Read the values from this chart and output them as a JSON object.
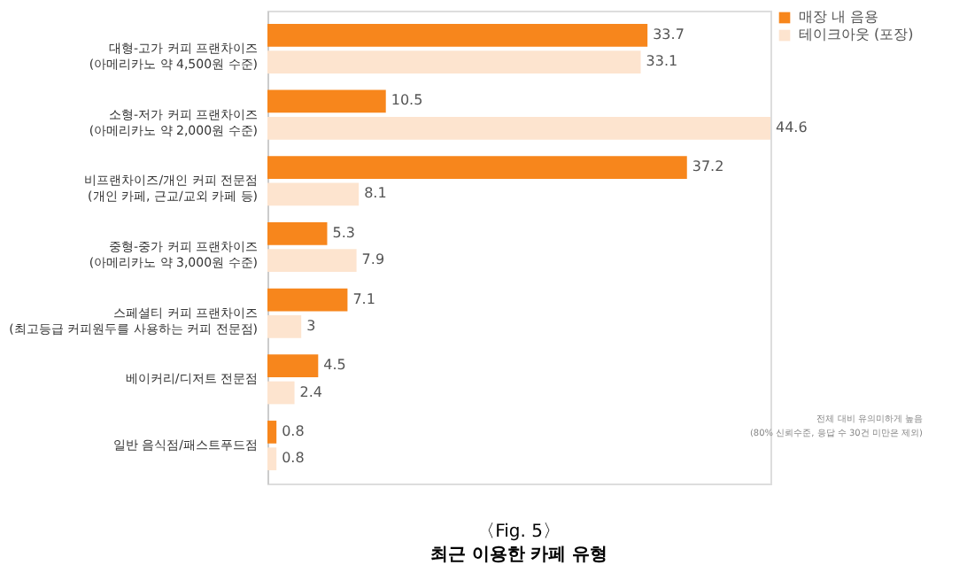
{
  "chart_data": {
    "type": "bar",
    "orientation": "horizontal",
    "title": "〈Fig. 5〉",
    "subtitle": "최근 이용한 카페 유형",
    "categories": [
      "대형-고가 커피 프랜차이즈\n(아메리카노 약 4,500원 수준)",
      "소형-저가 커피 프랜차이즈\n(아메리카노 약 2,000원 수준)",
      "비프랜차이즈/개인 커피 전문점\n(개인 카페, 근교/교외 카페 등)",
      "중형-중가 커피 프랜차이즈\n(아메리카노 약 3,000원 수준)",
      "스페셜티 커피 프랜차이즈\n(최고등급 커피원두를 사용하는 커피 전문점)",
      "베이커리/디저트 전문점",
      "일반 음식점/패스트푸드점"
    ],
    "series": [
      {
        "name": "매장 내 음용",
        "color": "#f7861c",
        "values": [
          33.7,
          10.5,
          37.2,
          5.3,
          7.1,
          4.5,
          0.8
        ]
      },
      {
        "name": "테이크아웃 (포장)",
        "color": "#fde4cf",
        "values": [
          33.1,
          44.6,
          8.1,
          7.9,
          3,
          2.4,
          0.8
        ]
      }
    ],
    "data_labels": true,
    "legend": "top right",
    "annotations": [
      "전체 대비 유의미하게 높음",
      "(80% 신뢰수준, 응답 수 30건 미만은 제외)"
    ]
  }
}
